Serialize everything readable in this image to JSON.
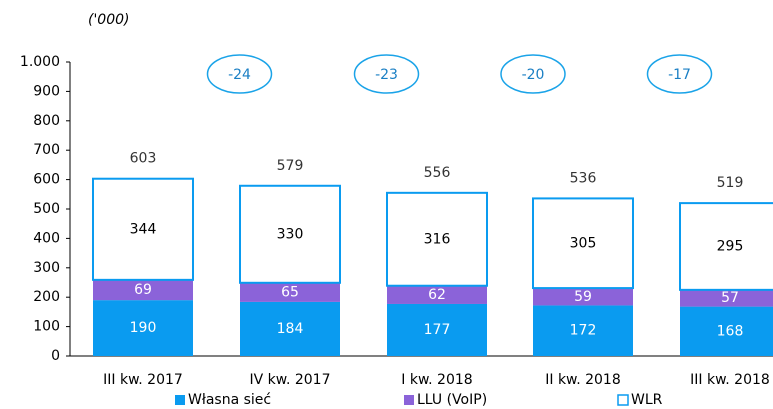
{
  "chart_data": {
    "type": "bar",
    "stacked": true,
    "unit_label": "('000)",
    "categories": [
      "III kw. 2017",
      "IV kw. 2017",
      "I kw. 2018",
      "II kw. 2018",
      "III kw. 2018"
    ],
    "series": [
      {
        "name": "Własna sieć",
        "color": "#0a9bf0",
        "values": [
          190,
          184,
          177,
          172,
          168
        ]
      },
      {
        "name": "LLU (VoIP)",
        "color": "#8b63d9",
        "values": [
          69,
          65,
          62,
          59,
          57
        ]
      },
      {
        "name": "WLR",
        "color": "#ffffff",
        "values": [
          344,
          330,
          316,
          305,
          295
        ]
      }
    ],
    "totals": [
      603,
      579,
      556,
      536,
      519
    ],
    "changes": [
      -24,
      -23,
      -20,
      -17
    ],
    "ylim": [
      0,
      1000
    ],
    "yticks": [
      0,
      100,
      200,
      300,
      400,
      500,
      600,
      700,
      800,
      900,
      {
        "value": 1000,
        "label": "1.000"
      }
    ]
  }
}
